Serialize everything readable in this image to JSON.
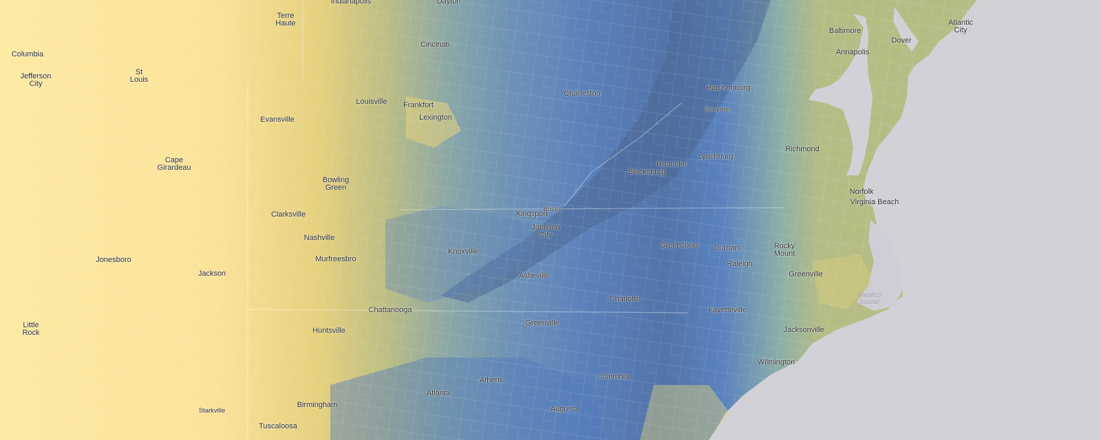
{
  "map": {
    "palette": {
      "low": "#fdeaa3",
      "mid": "#8fb0a6",
      "high": "#5a7fb8",
      "highest": "#4b6696",
      "water": "#d2d1d7"
    },
    "cities": [
      {
        "id": "indianapolis",
        "name": "Indianapolis"
      },
      {
        "id": "dayton",
        "name": "Dayton"
      },
      {
        "id": "terre-haute",
        "name": "Terre\nHaute"
      },
      {
        "id": "columbia-mo",
        "name": "Columbia"
      },
      {
        "id": "jefferson-city",
        "name": "Jefferson\nCity"
      },
      {
        "id": "st-louis",
        "name": "St\nLouis"
      },
      {
        "id": "cincinnati",
        "name": "Cincinati"
      },
      {
        "id": "louisville",
        "name": "Louisville"
      },
      {
        "id": "frankfort",
        "name": "Frankfort"
      },
      {
        "id": "lexington",
        "name": "Lexington"
      },
      {
        "id": "evansville",
        "name": "Evansville"
      },
      {
        "id": "cape-girardeau",
        "name": "Cape\nGirardeau"
      },
      {
        "id": "bowling-green",
        "name": "Bowling\nGreen"
      },
      {
        "id": "clarksville",
        "name": "Clarksville"
      },
      {
        "id": "nashville",
        "name": "Nashville"
      },
      {
        "id": "murfreesboro",
        "name": "Murfreesbro"
      },
      {
        "id": "jonesboro",
        "name": "Jonesboro"
      },
      {
        "id": "jackson-tn",
        "name": "Jackson"
      },
      {
        "id": "little-rock",
        "name": "Little\nRock"
      },
      {
        "id": "huntsville",
        "name": "Huntsville"
      },
      {
        "id": "chattanooga",
        "name": "Chattanooga"
      },
      {
        "id": "birmingham",
        "name": "Birmingham"
      },
      {
        "id": "starkville",
        "name": "Starkville"
      },
      {
        "id": "tuscaloosa",
        "name": "Tuscaloosa"
      },
      {
        "id": "knoxville",
        "name": "Knoxville"
      },
      {
        "id": "kingsport",
        "name": "Kingsport"
      },
      {
        "id": "bristol",
        "name": "Bristol"
      },
      {
        "id": "johnson-city",
        "name": "Johnson\nCity"
      },
      {
        "id": "asheville",
        "name": "Asheville"
      },
      {
        "id": "greenville-sc",
        "name": "Greenville"
      },
      {
        "id": "athens",
        "name": "Athens"
      },
      {
        "id": "atlanta",
        "name": "Atlanta"
      },
      {
        "id": "augusta",
        "name": "Augusta"
      },
      {
        "id": "columbia-sc",
        "name": "Columbia"
      },
      {
        "id": "charlotte",
        "name": "Charlotte"
      },
      {
        "id": "charleston-wv",
        "name": "Charleston"
      },
      {
        "id": "blacksburg",
        "name": "Blacksburg"
      },
      {
        "id": "roanoke",
        "name": "Roanoke"
      },
      {
        "id": "lynchburg",
        "name": "Lynchburg"
      },
      {
        "id": "harrisonburg",
        "name": "Harrisonburg"
      },
      {
        "id": "staunton",
        "name": "Staunton"
      },
      {
        "id": "richmond",
        "name": "Richmond"
      },
      {
        "id": "greensboro",
        "name": "Greensboro"
      },
      {
        "id": "durham",
        "name": "Durham"
      },
      {
        "id": "raleigh",
        "name": "Raleigh"
      },
      {
        "id": "rocky-mount",
        "name": "Rocky\nMount"
      },
      {
        "id": "greenville-nc",
        "name": "Greenville"
      },
      {
        "id": "fayetteville",
        "name": "Fayetteville"
      },
      {
        "id": "jacksonville-nc",
        "name": "Jacksonville"
      },
      {
        "id": "wilmington",
        "name": "Wilmington"
      },
      {
        "id": "norfolk",
        "name": "Norfolk"
      },
      {
        "id": "virginia-beach",
        "name": "Virginia Beach"
      },
      {
        "id": "baltimore",
        "name": "Baltimore"
      },
      {
        "id": "annapolis",
        "name": "Annapolis"
      },
      {
        "id": "dover",
        "name": "Dover"
      },
      {
        "id": "atlantic-city",
        "name": "Atlantic\nCity"
      }
    ],
    "water_labels": [
      {
        "id": "pamlico-sound",
        "name": "Pamlico\nSound"
      }
    ]
  }
}
